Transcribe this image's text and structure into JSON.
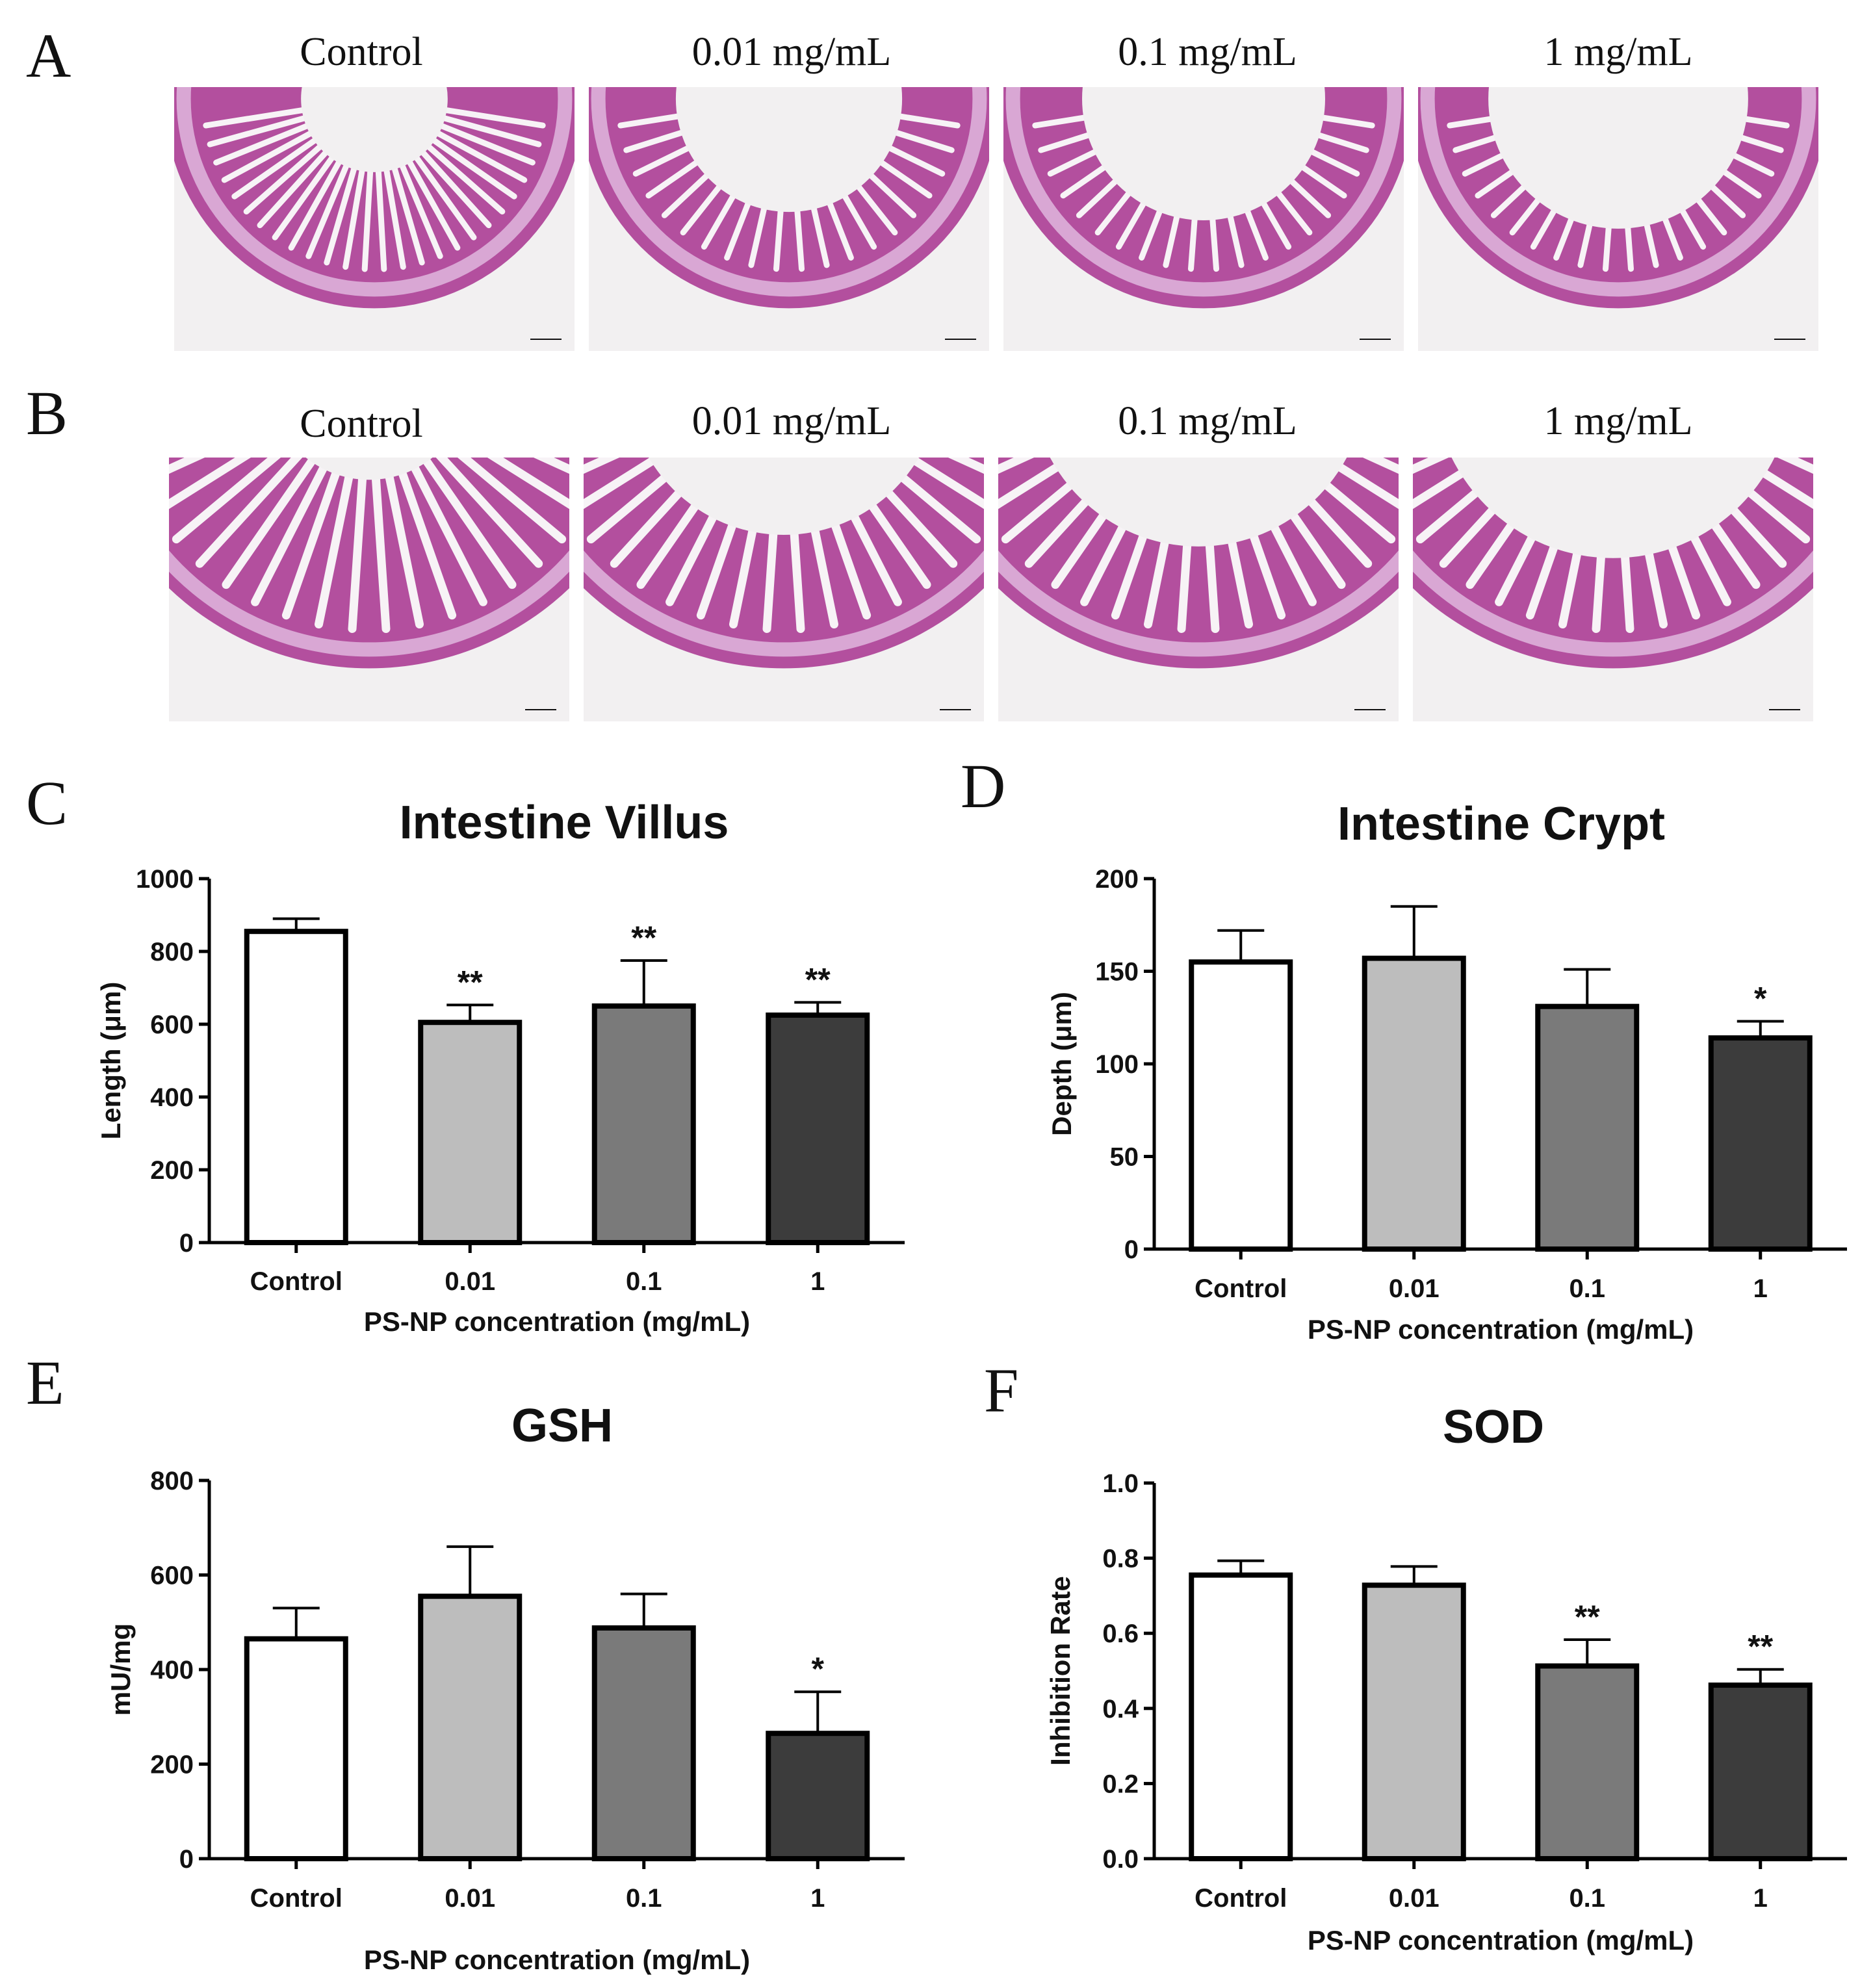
{
  "panels": {
    "A": {
      "label": "A",
      "images": [
        {
          "caption": "Control",
          "style": "control"
        },
        {
          "caption": "0.01 mg/mL",
          "style": "low"
        },
        {
          "caption": "0.1 mg/mL",
          "style": "mid"
        },
        {
          "caption": "1 mg/mL",
          "style": "high"
        }
      ]
    },
    "B": {
      "label": "B",
      "images": [
        {
          "caption": "Control",
          "style": "control"
        },
        {
          "caption": "0.01 mg/mL",
          "style": "low"
        },
        {
          "caption": "0.1 mg/mL",
          "style": "mid"
        },
        {
          "caption": "1 mg/mL",
          "style": "high"
        }
      ]
    }
  },
  "colors": {
    "tissue": "#b34f9e",
    "tissue_light": "#d9a7d4",
    "background": "#f2f0f1",
    "bar_fills": [
      "#ffffff",
      "#bdbdbd",
      "#7a7a7a",
      "#3c3c3c"
    ]
  },
  "chart_data": [
    {
      "panel": "C",
      "type": "bar",
      "title": "Intestine Villus",
      "ylabel": "Length (μm)",
      "xlabel": "PS-NP concentration (mg/mL)",
      "categories": [
        "Control",
        "0.01",
        "0.1",
        "1"
      ],
      "values": [
        855,
        605,
        650,
        625
      ],
      "errors": [
        35,
        48,
        125,
        35
      ],
      "significance": [
        "",
        "**",
        "**",
        "**"
      ],
      "ylim": [
        0,
        1000
      ],
      "yticks": [
        0,
        200,
        400,
        600,
        800,
        1000
      ]
    },
    {
      "panel": "D",
      "type": "bar",
      "title": "Intestine Crypt",
      "ylabel": "Depth (μm)",
      "xlabel": "PS-NP concentration (mg/mL)",
      "categories": [
        "Control",
        "0.01",
        "0.1",
        "1"
      ],
      "values": [
        155,
        157,
        131,
        114
      ],
      "errors": [
        17,
        28,
        20,
        9
      ],
      "significance": [
        "",
        "",
        "",
        "*"
      ],
      "ylim": [
        0,
        200
      ],
      "yticks": [
        0,
        50,
        100,
        150,
        200
      ]
    },
    {
      "panel": "E",
      "type": "bar",
      "title": "GSH",
      "ylabel": "mU/mg",
      "xlabel": "PS-NP concentration (mg/mL)",
      "categories": [
        "Control",
        "0.01",
        "0.1",
        "1"
      ],
      "values": [
        465,
        555,
        488,
        265
      ],
      "errors": [
        65,
        105,
        72,
        88
      ],
      "significance": [
        "",
        "",
        "",
        "*"
      ],
      "ylim": [
        0,
        800
      ],
      "yticks": [
        0,
        200,
        400,
        600,
        800
      ]
    },
    {
      "panel": "F",
      "type": "bar",
      "title": "SOD",
      "ylabel": "Inhibition Rate",
      "xlabel": "PS-NP concentration (mg/mL)",
      "categories": [
        "Control",
        "0.01",
        "0.1",
        "1"
      ],
      "values": [
        0.755,
        0.728,
        0.513,
        0.462
      ],
      "errors": [
        0.038,
        0.05,
        0.07,
        0.042
      ],
      "significance": [
        "",
        "",
        "**",
        "**"
      ],
      "ylim": [
        0,
        1.0
      ],
      "yticks": [
        "0.0",
        "0.2",
        "0.4",
        "0.6",
        "0.8",
        "1.0"
      ]
    }
  ]
}
